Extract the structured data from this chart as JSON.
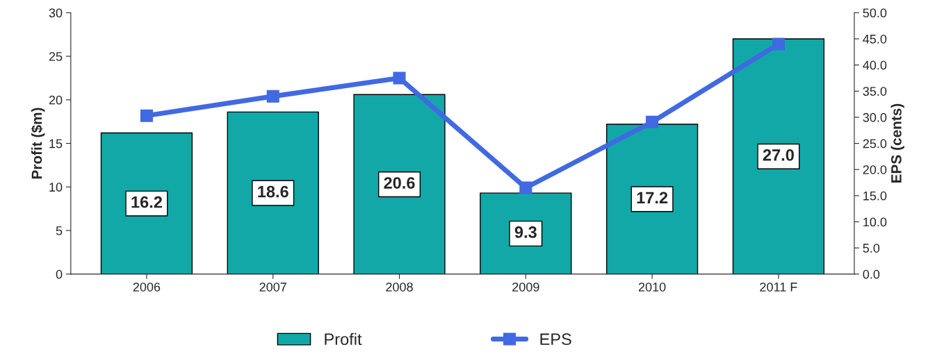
{
  "chart_data": {
    "type": "bar",
    "categories": [
      "2006",
      "2007",
      "2008",
      "2009",
      "2010",
      "2011 F"
    ],
    "series": [
      {
        "name": "Profit",
        "type": "bar",
        "color": "#12a8a8",
        "values": [
          16.2,
          18.6,
          20.6,
          9.3,
          17.2,
          27.0
        ],
        "value_labels": [
          "16.2",
          "18.6",
          "20.6",
          "9.3",
          "17.2",
          "27.0"
        ]
      },
      {
        "name": "EPS",
        "type": "line",
        "axis": "y2",
        "color": "#4169e1",
        "values": [
          30.3,
          34.0,
          37.5,
          16.5,
          29.1,
          44.0
        ]
      }
    ],
    "ylabel": "Profit ($m)",
    "y2label": "EPS (cents)",
    "ylim": [
      0,
      30
    ],
    "yticks": [
      0,
      5,
      10,
      15,
      20,
      25,
      30
    ],
    "y2lim": [
      0,
      50
    ],
    "y2ticks": [
      {
        "value": 0,
        "label": "0.0"
      },
      {
        "value": 5,
        "label": "5.0"
      },
      {
        "value": 10,
        "label": "10.0"
      },
      {
        "value": 15,
        "label": "15.0"
      },
      {
        "value": 20,
        "label": "20.0"
      },
      {
        "value": 25,
        "label": "25.0"
      },
      {
        "value": 30,
        "label": "30.0"
      },
      {
        "value": 35,
        "label": "35.0"
      },
      {
        "value": 40,
        "label": "40.0"
      },
      {
        "value": 45,
        "label": "45.0"
      },
      {
        "value": 50,
        "label": "50.0"
      }
    ],
    "marker": "square",
    "line_style": "solid",
    "legend": "bottom",
    "grid": false
  }
}
